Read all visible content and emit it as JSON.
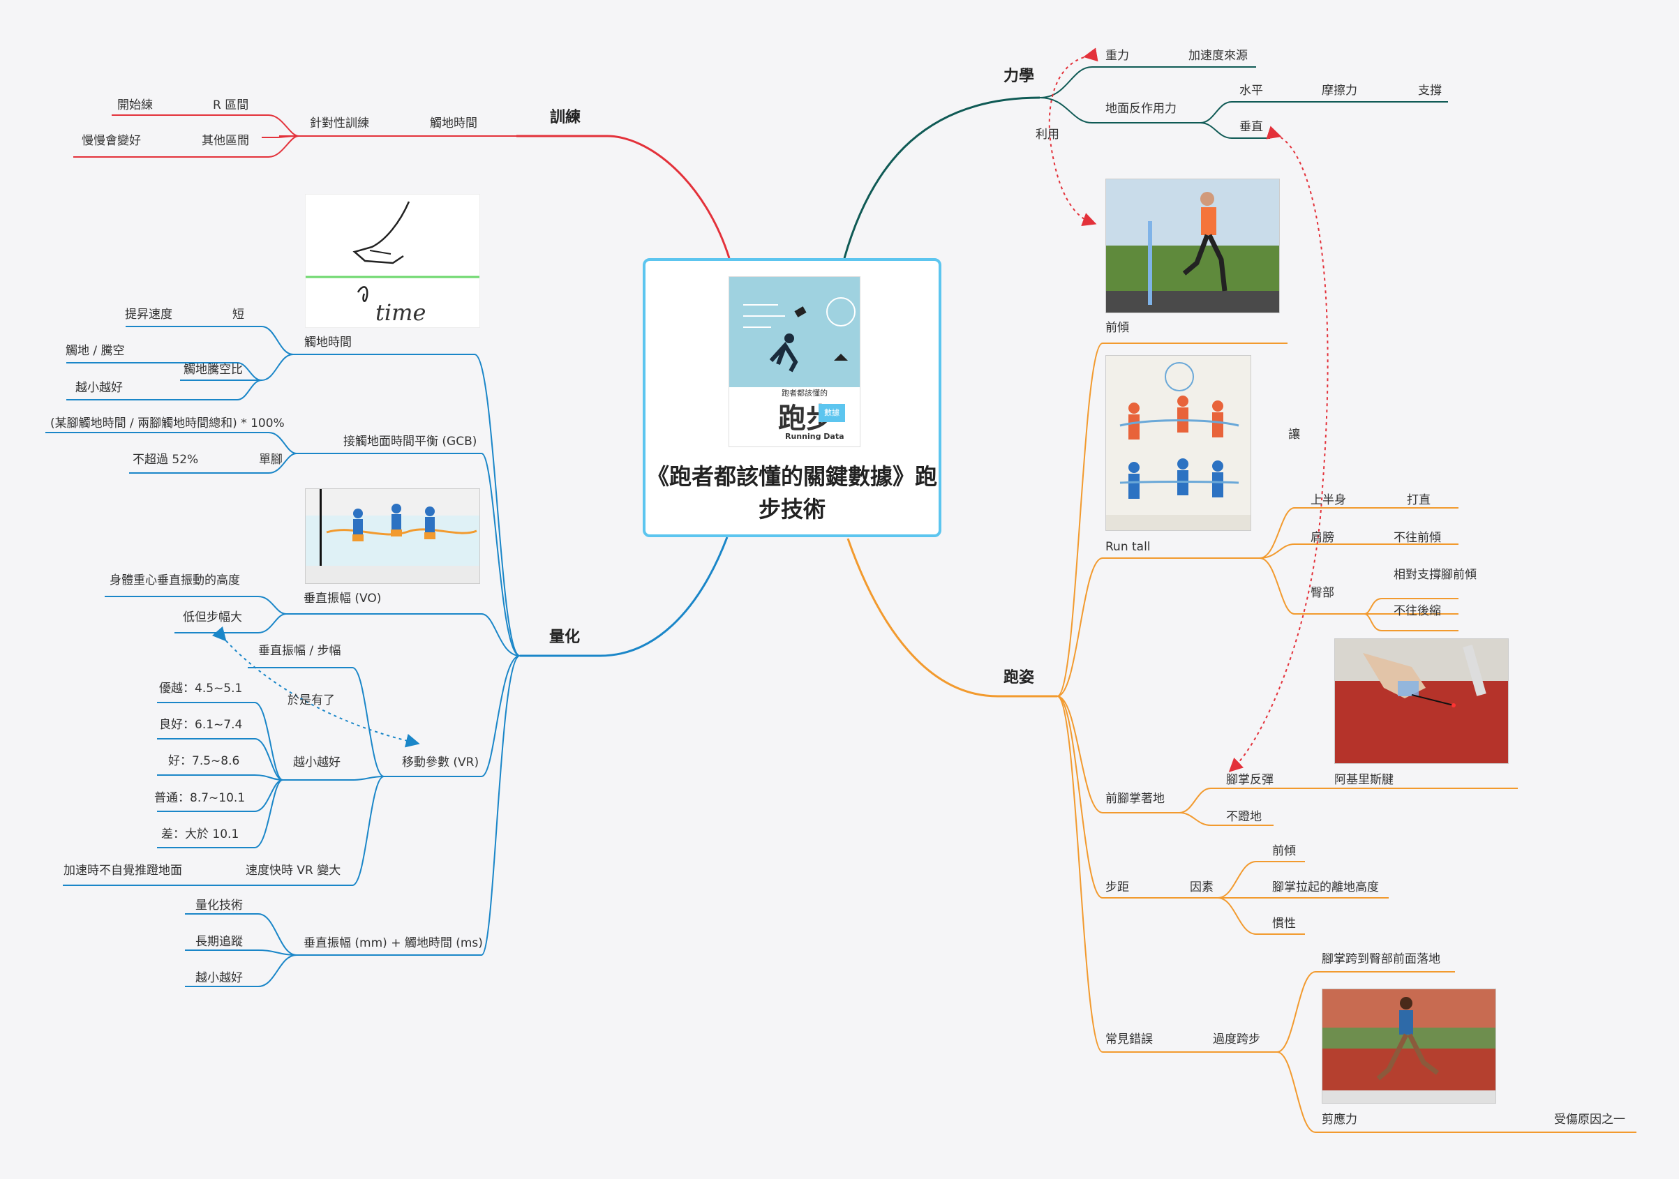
{
  "central": {
    "title": "《跑者都該懂的關鍵數據》跑步技術"
  },
  "book": {
    "title": "跑步",
    "subtitle": "跑者都該懂的",
    "tag": "數據",
    "english": "Running Data"
  },
  "branches": {
    "training": {
      "label": "訓練",
      "contact_time": "觸地時間",
      "targeted": "針對性訓練",
      "r_zone": "R 區間",
      "start": "開始練",
      "other_zone": "其他區間",
      "slowly": "慢慢會變好"
    },
    "mechanics": {
      "label": "力學",
      "gravity": "重力",
      "accel": "加速度來源",
      "grf": "地面反作用力",
      "horizontal": "水平",
      "friction": "摩擦力",
      "support": "支撐",
      "vertical": "垂直",
      "use": "利用"
    },
    "quantify": {
      "label": "量化",
      "contact_time": "觸地時間",
      "speed_up": "提昇速度",
      "short": "短",
      "ratio": "觸地騰空比",
      "contact_air": "觸地 / 騰空",
      "smaller_better_1": "越小越好",
      "gcb": "接觸地面時間平衡 (GCB)",
      "gcb_formula": "(某腳觸地時間 / 兩腳觸地時間總和) * 100%",
      "single_foot": "單腳",
      "under52": "不超過 52%",
      "vo": "垂直振幅 (VO)",
      "vo_desc": "身體重心垂直振動的高度",
      "low_big_stride": "低但步幅大",
      "vo_stride": "垂直振幅 / 步幅",
      "so_have": "於是有了",
      "vr": "移動參數 (VR)",
      "smaller_better_2": "越小越好",
      "excellent": "優越：4.5~5.1",
      "good_plus": "良好：6.1~7.4",
      "good": "好：7.5~8.6",
      "average": "普通：8.7~10.1",
      "poor": "差：大於 10.1",
      "faster_vr": "速度快時 VR 變大",
      "push_ground": "加速時不自覺推蹬地面",
      "vo_ct": "垂直振幅 (mm) + 觸地時間 (ms)",
      "quant_tech": "量化技術",
      "long_track": "長期追蹤",
      "smaller_better_3": "越小越好"
    },
    "form": {
      "label": "跑姿",
      "lean": "前傾",
      "run_tall": "Run tall",
      "upper_body": "上半身",
      "straight": "打直",
      "shoulder": "肩膀",
      "no_forward": "不往前傾",
      "hip": "臀部",
      "rel_forward": "相對支撐腳前傾",
      "no_back": "不往後縮",
      "forefoot": "前腳掌著地",
      "sole_rebound": "腳掌反彈",
      "achilles": "阿基里斯腱",
      "no_push": "不蹬地",
      "let": "讓",
      "stride": "步距",
      "factors": "因素",
      "f_lean": "前傾",
      "f_height": "腳掌拉起的離地高度",
      "f_inertia": "慣性",
      "mistakes": "常見錯誤",
      "overstride": "過度跨步",
      "overstride_desc": "腳掌跨到臀部前面落地",
      "shear": "剪應力",
      "injury": "受傷原因之一"
    }
  },
  "sketch": {
    "caption": "time"
  },
  "colors": {
    "training": "#e3313a",
    "mechanics": "#0f5a55",
    "quantify": "#1a86c8",
    "form": "#f29a2e",
    "central_border": "#5cc5ef"
  }
}
